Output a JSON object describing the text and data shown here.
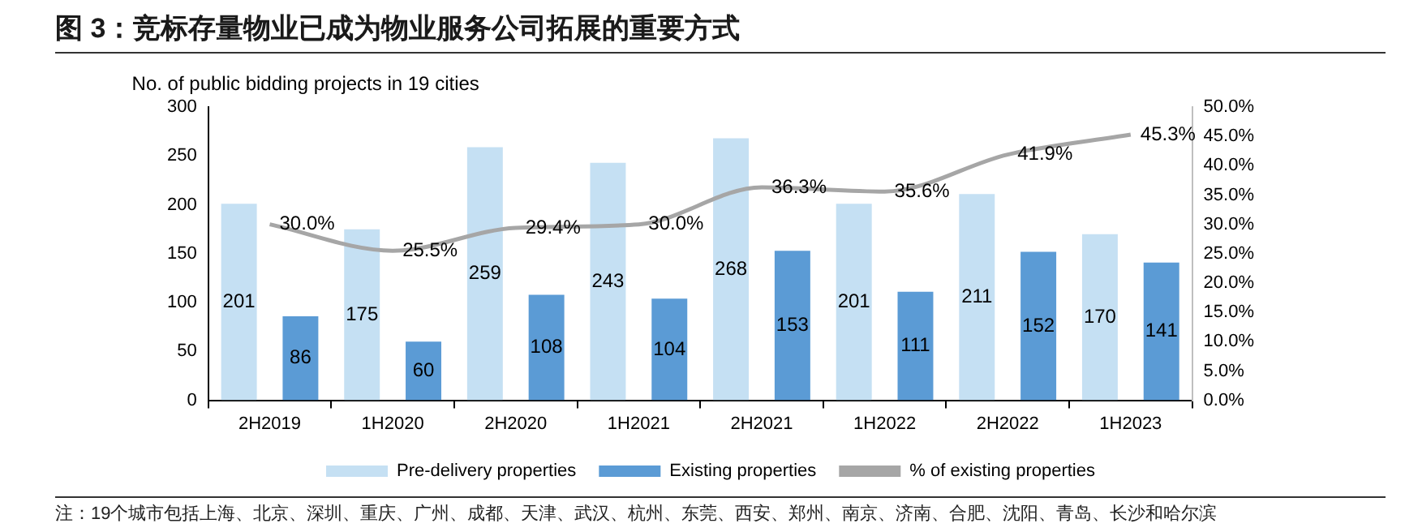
{
  "chart_data": {
    "type": "bar",
    "title": "图 3：竞标存量物业已成为物业服务公司拓展的重要方式",
    "ylabel": "No. of public bidding projects in 19 cities",
    "categories": [
      "2H2019",
      "1H2020",
      "2H2020",
      "1H2021",
      "2H2021",
      "1H2022",
      "2H2022",
      "1H2023"
    ],
    "series": [
      {
        "name": "Pre-delivery properties",
        "color": "#c5e0f3",
        "values": [
          201,
          175,
          259,
          243,
          268,
          201,
          211,
          170
        ]
      },
      {
        "name": "Existing properties",
        "color": "#5b9bd5",
        "values": [
          86,
          60,
          108,
          104,
          153,
          111,
          152,
          141
        ]
      },
      {
        "name": "% of existing properties",
        "type": "line",
        "axis": "y2",
        "color": "#a6a6a6",
        "values": [
          30.0,
          25.5,
          29.4,
          30.0,
          36.3,
          35.6,
          41.9,
          45.3
        ],
        "value_labels": [
          "30.0%",
          "25.5%",
          "29.4%",
          "30.0%",
          "36.3%",
          "35.6%",
          "41.9%",
          "45.3%"
        ]
      }
    ],
    "ylim": [
      0,
      300
    ],
    "yticks": [
      0,
      50,
      100,
      150,
      200,
      250,
      300
    ],
    "y2lim": [
      0,
      50
    ],
    "y2ticks": [
      {
        "value": 0,
        "label": "0.0%"
      },
      {
        "value": 5,
        "label": "5.0%"
      },
      {
        "value": 10,
        "label": "10.0%"
      },
      {
        "value": 15,
        "label": "15.0%"
      },
      {
        "value": 20,
        "label": "20.0%"
      },
      {
        "value": 25,
        "label": "25.0%"
      },
      {
        "value": 30,
        "label": "30.0%"
      },
      {
        "value": 35,
        "label": "35.0%"
      },
      {
        "value": 40,
        "label": "40.0%"
      },
      {
        "value": 45,
        "label": "45.0%"
      },
      {
        "value": 50,
        "label": "50.0%"
      }
    ],
    "data_labels": true,
    "grid": false,
    "legend": "bottom",
    "marker": "none",
    "annotations": [
      "注：19个城市包括上海、北京、深圳、重庆、广州、成都、天津、武汉、杭州、东莞、西安、郑州、南京、济南、合肥、沈阳、青岛、长沙和哈尔滨"
    ]
  }
}
